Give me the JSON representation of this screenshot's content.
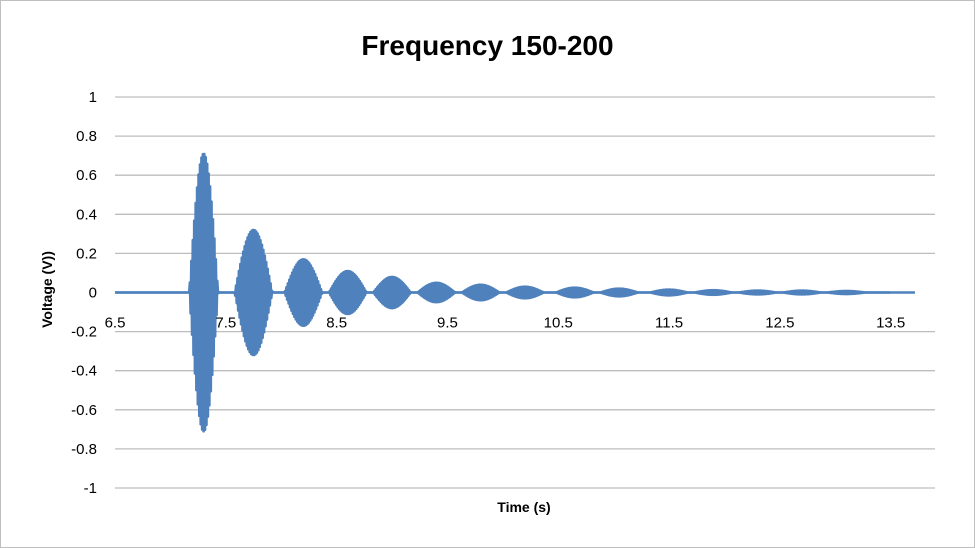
{
  "chart_data": {
    "type": "line",
    "title": "Frequency 150-200",
    "xlabel": "Time (s)",
    "ylabel": "Voltage (V))",
    "xlim": [
      6.5,
      13.9
    ],
    "ylim": [
      -1,
      1
    ],
    "x_ticks": [
      "6.5",
      "7.5",
      "8.5",
      "9.5",
      "10.5",
      "11.5",
      "12.5",
      "13.5"
    ],
    "y_ticks": [
      "1",
      "0.8",
      "0.6",
      "0.4",
      "0.2",
      "0",
      "-0.2",
      "-0.4",
      "-0.6",
      "-0.8",
      "-1"
    ],
    "grid": true,
    "legend": "none",
    "series_color": "#4f81bd",
    "series": [
      {
        "envelope_peaks": [
          {
            "x": 7.3,
            "y": 0.71
          },
          {
            "x": 7.75,
            "y": 0.32
          },
          {
            "x": 8.2,
            "y": 0.17
          },
          {
            "x": 8.6,
            "y": 0.11
          },
          {
            "x": 9.0,
            "y": 0.08
          },
          {
            "x": 9.4,
            "y": 0.05
          },
          {
            "x": 9.8,
            "y": 0.04
          },
          {
            "x": 10.2,
            "y": 0.03
          },
          {
            "x": 10.65,
            "y": 0.025
          },
          {
            "x": 11.05,
            "y": 0.02
          },
          {
            "x": 11.5,
            "y": 0.015
          },
          {
            "x": 11.9,
            "y": 0.012
          },
          {
            "x": 12.3,
            "y": 0.01
          },
          {
            "x": 12.7,
            "y": 0.01
          },
          {
            "x": 13.1,
            "y": 0.008
          }
        ],
        "signal_start": 6.5,
        "signal_end": 13.5
      }
    ]
  }
}
